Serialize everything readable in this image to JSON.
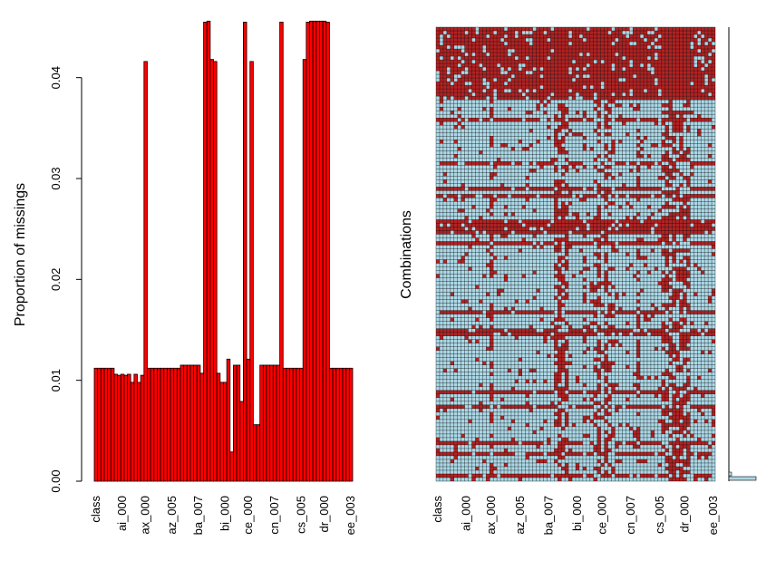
{
  "chart_data": [
    {
      "type": "bar",
      "ylabel": "Proportion of missings",
      "ylim": [
        0,
        0.045
      ],
      "yticks": [
        0.0,
        0.01,
        0.02,
        0.03,
        0.04
      ],
      "ytick_labels": [
        "0.00",
        "0.01",
        "0.02",
        "0.03",
        "0.04"
      ],
      "xtick_labels": [
        "class",
        "ai_000",
        "ax_000",
        "az_005",
        "ba_007",
        "bi_000",
        "ce_000",
        "cn_007",
        "cs_005",
        "dr_000",
        "ee_003"
      ],
      "bar_color": "#ff0000",
      "n_bars": 78,
      "values": [
        0.0112,
        0.0112,
        0.0112,
        0.0112,
        0.0112,
        0.0112,
        0.0106,
        0.0105,
        0.0106,
        0.0105,
        0.0106,
        0.0098,
        0.0106,
        0.0098,
        0.0105,
        0.0416,
        0.0112,
        0.0112,
        0.0112,
        0.0112,
        0.0112,
        0.0112,
        0.0112,
        0.0112,
        0.0112,
        0.0112,
        0.0115,
        0.0115,
        0.0115,
        0.0115,
        0.0115,
        0.0115,
        0.0107,
        0.0455,
        0.0456,
        0.0418,
        0.0416,
        0.0107,
        0.0098,
        0.0098,
        0.0121,
        0.0029,
        0.0115,
        0.0115,
        0.0079,
        0.0455,
        0.0121,
        0.0416,
        0.0056,
        0.0056,
        0.0115,
        0.0115,
        0.0115,
        0.0115,
        0.0115,
        0.0115,
        0.0455,
        0.0112,
        0.0112,
        0.0112,
        0.0112,
        0.0112,
        0.0112,
        0.0418,
        0.0455,
        0.0456,
        0.0456,
        0.0456,
        0.0456,
        0.0456,
        0.0455,
        0.0112,
        0.0112,
        0.0112,
        0.0112,
        0.0112,
        0.0112,
        0.0112
      ]
    },
    {
      "type": "heatmap",
      "ylabel": "Combinations",
      "xtick_labels": [
        "class",
        "ai_000",
        "ax_000",
        "az_005",
        "ba_007",
        "bi_000",
        "ce_000",
        "cn_007",
        "cs_005",
        "dr_000",
        "ee_003"
      ],
      "colors": {
        "missing": "#b22222",
        "observed": "#add8e6",
        "grid": "#000000"
      },
      "n_columns": 78,
      "n_rows": 125
    }
  ]
}
